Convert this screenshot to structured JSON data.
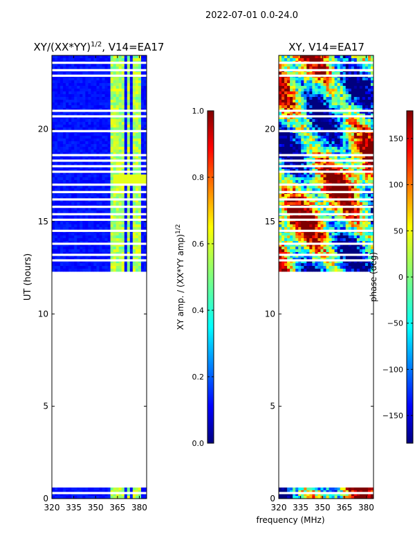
{
  "figure": {
    "suptitle": "2022-07-01 0.0-24.0",
    "shared_xlabel": "frequency (MHz)"
  },
  "colors": {
    "jet": [
      "#00007f",
      "#0000ff",
      "#007fff",
      "#00ffff",
      "#7fff7f",
      "#ffff00",
      "#ff7f00",
      "#ff0000",
      "#7f0000"
    ],
    "background": "#ffffff",
    "axis": "#000000"
  },
  "chart_data": [
    {
      "type": "heatmap",
      "title": "XY/(XX*YY)^{1/2}, V14=EA17",
      "title_main": "XY/(XX*YY)",
      "title_sup": "1/2",
      "title_tail": ", V14=EA17",
      "xlabel": "",
      "ylabel": "UT (hours)",
      "xlim": [
        320,
        385
      ],
      "ylim": [
        0,
        24
      ],
      "xticks": [
        "320",
        "335",
        "350",
        "365",
        "380"
      ],
      "xtick_values": [
        320,
        335,
        350,
        365,
        380
      ],
      "yticks": [
        "0",
        "5",
        "10",
        "15",
        "20"
      ],
      "ytick_values": [
        0,
        5,
        10,
        15,
        20
      ],
      "data_bands_hours": [
        [
          0.0,
          0.6
        ],
        [
          12.3,
          24.0
        ]
      ],
      "gap_rows_hours": [
        0.3,
        12.9,
        13.2,
        13.8,
        14.5,
        15.1,
        15.4,
        15.8,
        16.2,
        16.6,
        17.0,
        17.7,
        18.0,
        18.3,
        18.6,
        19.9,
        20.7,
        21.0,
        22.9,
        23.2,
        23.6
      ],
      "high_amplitude_channels_MHz": [
        362,
        364,
        368,
        372,
        376,
        379
      ],
      "colorbar": {
        "label": "XY amp. / (XX*YY amp)^{1/2}",
        "label_main": "XY amp. / (XX*YY amp)",
        "label_sup": "1/2",
        "range": [
          0.0,
          1.0
        ],
        "ticks": [
          "0.0",
          "0.2",
          "0.4",
          "0.6",
          "0.8",
          "1.0"
        ],
        "tick_values": [
          0.0,
          0.2,
          0.4,
          0.6,
          0.8,
          1.0
        ]
      }
    },
    {
      "type": "heatmap",
      "title": "XY, V14=EA17",
      "xlabel": "frequency (MHz)",
      "ylabel": "",
      "xlim": [
        320,
        385
      ],
      "ylim": [
        0,
        24
      ],
      "xticks": [
        "320",
        "335",
        "350",
        "365",
        "380"
      ],
      "xtick_values": [
        320,
        335,
        350,
        365,
        380
      ],
      "yticks": [
        "0",
        "5",
        "10",
        "15",
        "20"
      ],
      "ytick_values": [
        0,
        5,
        10,
        15,
        20
      ],
      "data_bands_hours": [
        [
          0.0,
          0.6
        ],
        [
          12.3,
          24.0
        ]
      ],
      "gap_rows_hours": [
        0.3,
        12.9,
        13.2,
        13.8,
        14.5,
        15.1,
        15.4,
        15.8,
        16.2,
        16.6,
        17.0,
        17.7,
        18.0,
        18.3,
        18.6,
        19.9,
        20.7,
        21.0,
        22.9,
        23.2,
        23.6
      ],
      "colorbar": {
        "label": "phase (deg)",
        "range": [
          -180,
          180
        ],
        "ticks": [
          "−150",
          "−100",
          "−50",
          "0",
          "50",
          "100",
          "150"
        ],
        "tick_values": [
          -150,
          -100,
          -50,
          0,
          50,
          100,
          150
        ]
      }
    }
  ]
}
